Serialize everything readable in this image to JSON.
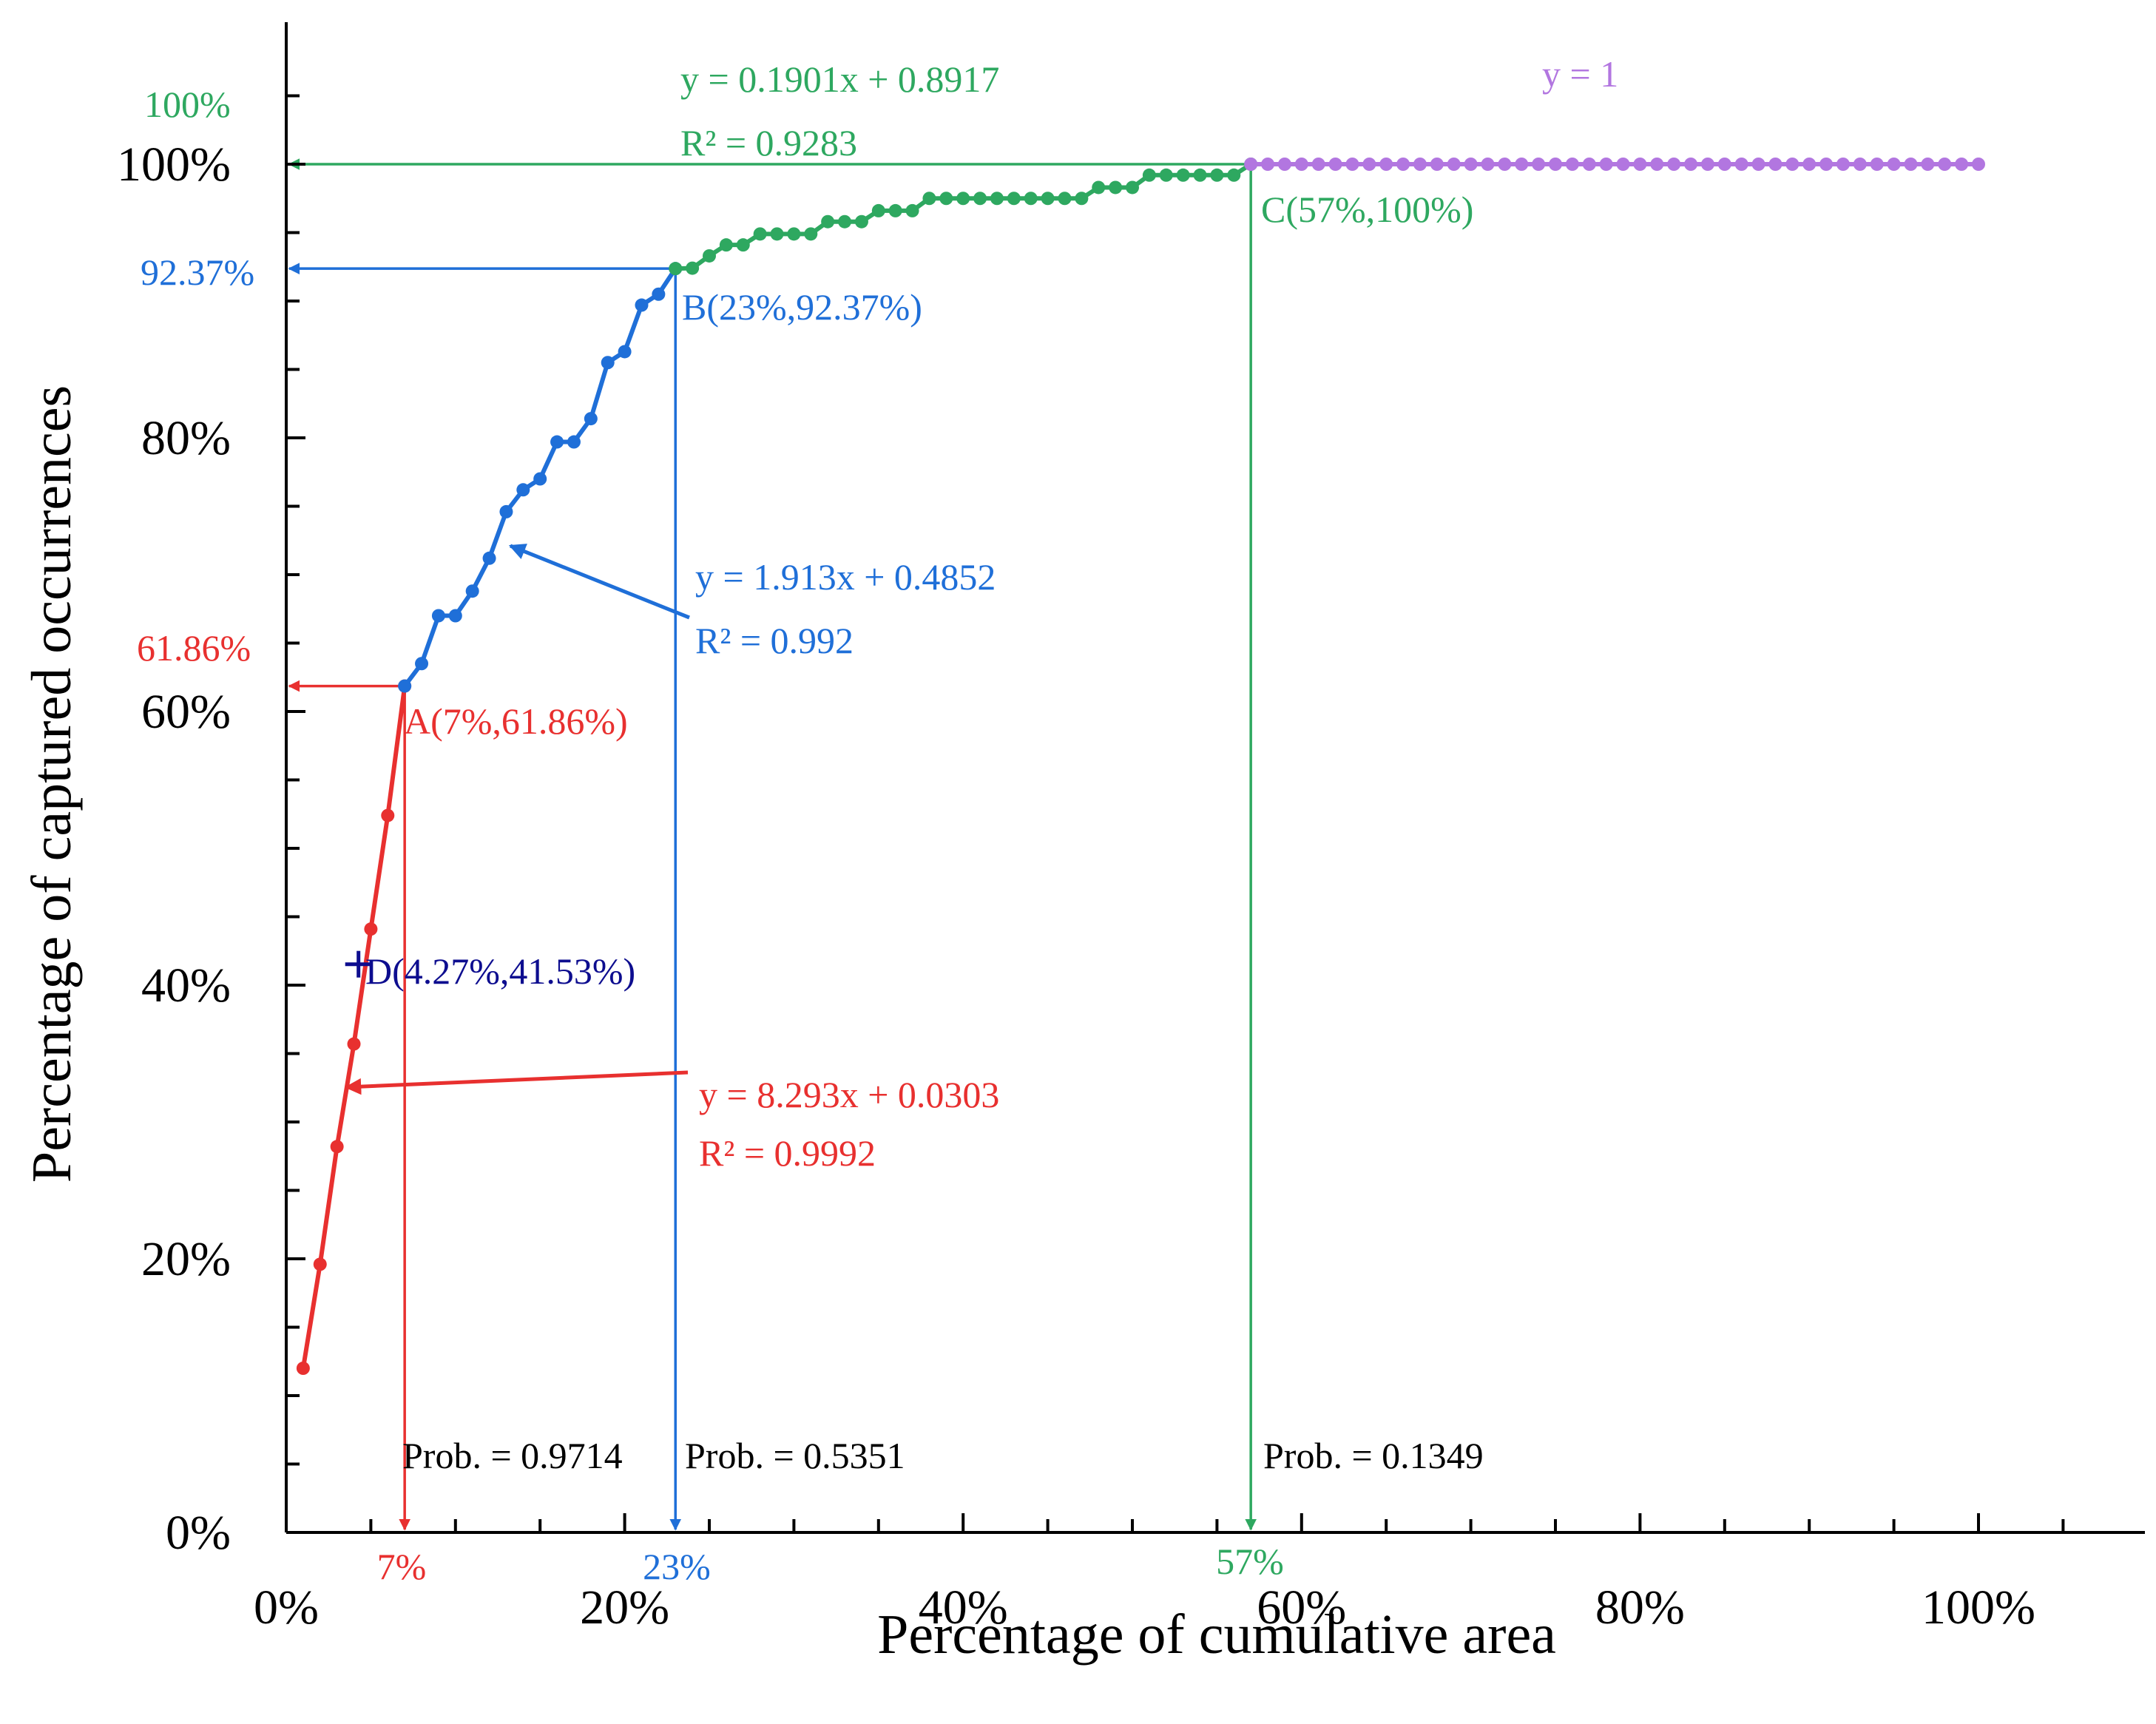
{
  "chart_data": {
    "type": "line",
    "xlabel": "Percentage of cumulative area",
    "ylabel": "Percentage of captured occurrences",
    "xlim": [
      -0.01,
      1.1
    ],
    "ylim": [
      0,
      1.1
    ],
    "x_ticks": [
      0,
      0.2,
      0.4,
      0.6,
      0.8,
      1.0
    ],
    "x_tick_labels": [
      "0%",
      "20%",
      "40%",
      "60%",
      "80%",
      "100%"
    ],
    "y_ticks": [
      0,
      0.2,
      0.4,
      0.6,
      0.8,
      1.0
    ],
    "y_tick_labels": [
      "0%",
      "20%",
      "40%",
      "60%",
      "80%",
      "100%"
    ],
    "colors": {
      "red": "#e8302f",
      "blue": "#1f6fd8",
      "green": "#2ea860",
      "purple": "#b276e0",
      "navy": "#0d0d8f"
    },
    "series": [
      {
        "name": "segment-red",
        "color": "#e8302f",
        "x": [
          0.01,
          0.02,
          0.03,
          0.04,
          0.05,
          0.06,
          0.07
        ],
        "y": [
          0.12,
          0.196,
          0.282,
          0.357,
          0.441,
          0.524,
          0.6186
        ]
      },
      {
        "name": "segment-blue",
        "color": "#1f6fd8",
        "x": [
          0.07,
          0.08,
          0.09,
          0.1,
          0.11,
          0.12,
          0.13,
          0.14,
          0.15,
          0.16,
          0.17,
          0.18,
          0.19,
          0.2,
          0.21,
          0.22,
          0.23
        ],
        "y": [
          0.6186,
          0.635,
          0.67,
          0.67,
          0.688,
          0.712,
          0.746,
          0.762,
          0.77,
          0.797,
          0.797,
          0.814,
          0.855,
          0.863,
          0.897,
          0.905,
          0.9237
        ]
      },
      {
        "name": "segment-green",
        "color": "#2ea860",
        "x": [
          0.23,
          0.24,
          0.25,
          0.26,
          0.27,
          0.28,
          0.29,
          0.3,
          0.31,
          0.32,
          0.33,
          0.34,
          0.35,
          0.36,
          0.37,
          0.38,
          0.39,
          0.4,
          0.41,
          0.42,
          0.43,
          0.44,
          0.45,
          0.46,
          0.47,
          0.48,
          0.49,
          0.5,
          0.51,
          0.52,
          0.53,
          0.54,
          0.55,
          0.56,
          0.57
        ],
        "y": [
          0.9237,
          0.924,
          0.933,
          0.941,
          0.941,
          0.949,
          0.949,
          0.949,
          0.949,
          0.958,
          0.958,
          0.958,
          0.966,
          0.966,
          0.966,
          0.975,
          0.975,
          0.975,
          0.975,
          0.975,
          0.975,
          0.975,
          0.975,
          0.975,
          0.975,
          0.983,
          0.983,
          0.983,
          0.992,
          0.992,
          0.992,
          0.992,
          0.992,
          0.992,
          1.0
        ]
      },
      {
        "name": "segment-purple",
        "color": "#b276e0",
        "x": [
          0.57,
          0.58,
          0.59,
          0.6,
          0.61,
          0.62,
          0.63,
          0.64,
          0.65,
          0.66,
          0.67,
          0.68,
          0.69,
          0.7,
          0.71,
          0.72,
          0.73,
          0.74,
          0.75,
          0.76,
          0.77,
          0.78,
          0.79,
          0.8,
          0.81,
          0.82,
          0.83,
          0.84,
          0.85,
          0.86,
          0.87,
          0.88,
          0.89,
          0.9,
          0.91,
          0.92,
          0.93,
          0.94,
          0.95,
          0.96,
          0.97,
          0.98,
          0.99,
          1.0
        ],
        "y": [
          1,
          1,
          1,
          1,
          1,
          1,
          1,
          1,
          1,
          1,
          1,
          1,
          1,
          1,
          1,
          1,
          1,
          1,
          1,
          1,
          1,
          1,
          1,
          1,
          1,
          1,
          1,
          1,
          1,
          1,
          1,
          1,
          1,
          1,
          1,
          1,
          1,
          1,
          1,
          1,
          1,
          1,
          1,
          1
        ]
      }
    ],
    "special_points": [
      {
        "id": "A",
        "x": 0.07,
        "y": 0.6186,
        "label": "A(7%,61.86%)",
        "x_axis_label": "7%",
        "y_axis_label": "61.86%",
        "prob": "Prob. = 0.9714",
        "color": "#e8302f"
      },
      {
        "id": "B",
        "x": 0.23,
        "y": 0.9237,
        "label": "B(23%,92.37%)",
        "x_axis_label": "23%",
        "y_axis_label": "92.37%",
        "prob": "Prob. = 0.5351",
        "color": "#1f6fd8"
      },
      {
        "id": "C",
        "x": 0.57,
        "y": 1.0,
        "label": "C(57%,100%)",
        "x_axis_label": "57%",
        "y_axis_label": "100%",
        "prob": "Prob. = 0.1349",
        "color": "#2ea860"
      },
      {
        "id": "D",
        "x": 0.0427,
        "y": 0.4153,
        "label": "D(4.27%,41.53%)",
        "color": "#0d0d8f"
      }
    ],
    "regressions": [
      {
        "segment": "red",
        "equation": "y = 8.293x + 0.0303",
        "r2": "R² = 0.9992",
        "color": "#e8302f"
      },
      {
        "segment": "blue",
        "equation": "y = 1.913x + 0.4852",
        "r2": "R² = 0.992",
        "color": "#1f6fd8"
      },
      {
        "segment": "green",
        "equation": "y = 0.1901x + 0.8917",
        "r2": "R² = 0.9283",
        "color": "#2ea860"
      },
      {
        "segment": "purple",
        "equation": "y = 1",
        "color": "#b276e0"
      }
    ]
  }
}
